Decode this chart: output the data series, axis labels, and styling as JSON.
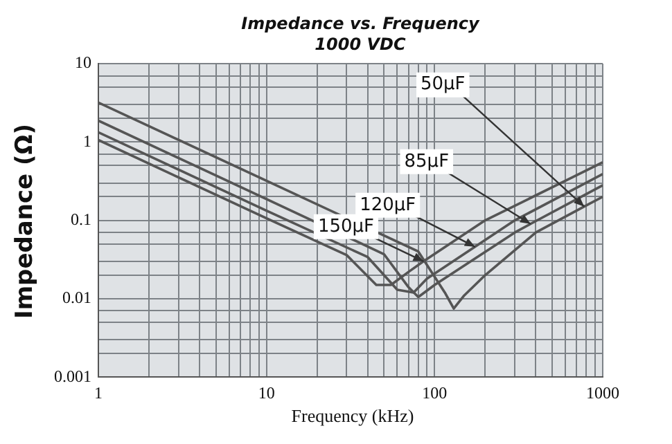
{
  "chart_data": {
    "type": "line",
    "title": "Impedance vs. Frequency",
    "subtitle": "1000 VDC",
    "xlabel": "Frequency (kHz)",
    "ylabel": "Impedance (Ω)",
    "log": "xy",
    "grid": true,
    "legend": false,
    "marker": "none",
    "line_style": "solid",
    "xlim": [
      1,
      1000
    ],
    "ylim": [
      0.001,
      10
    ],
    "xticks": [
      1,
      {
        "value": 2,
        "label": null
      },
      {
        "value": 3,
        "label": null
      },
      {
        "value": 4,
        "label": null
      },
      {
        "value": 5,
        "label": null
      },
      {
        "value": 6,
        "label": null
      },
      {
        "value": 7,
        "label": null
      },
      {
        "value": 8,
        "label": null
      },
      {
        "value": 9,
        "label": null
      },
      10,
      {
        "value": 20,
        "label": null
      },
      {
        "value": 30,
        "label": null
      },
      {
        "value": 40,
        "label": null
      },
      {
        "value": 50,
        "label": null
      },
      {
        "value": 60,
        "label": null
      },
      {
        "value": 70,
        "label": null
      },
      {
        "value": 80,
        "label": null
      },
      {
        "value": 90,
        "label": null
      },
      100,
      {
        "value": 200,
        "label": null
      },
      {
        "value": 300,
        "label": null
      },
      {
        "value": 400,
        "label": null
      },
      {
        "value": 500,
        "label": null
      },
      {
        "value": 600,
        "label": null
      },
      {
        "value": 700,
        "label": null
      },
      {
        "value": 800,
        "label": null
      },
      {
        "value": 900,
        "label": null
      },
      1000
    ],
    "yticks": [
      0.001,
      {
        "value": 0.002,
        "label": null
      },
      {
        "value": 0.003,
        "label": null
      },
      {
        "value": 0.005,
        "label": null
      },
      {
        "value": 0.007,
        "label": null
      },
      0.01,
      {
        "value": 0.02,
        "label": null
      },
      {
        "value": 0.03,
        "label": null
      },
      {
        "value": 0.05,
        "label": null
      },
      {
        "value": 0.07,
        "label": null
      },
      0.1,
      {
        "value": 0.2,
        "label": null
      },
      {
        "value": 0.3,
        "label": null
      },
      {
        "value": 0.5,
        "label": null
      },
      {
        "value": 0.7,
        "label": null
      },
      1,
      {
        "value": 2,
        "label": null
      },
      {
        "value": 3,
        "label": null
      },
      {
        "value": 5,
        "label": null
      },
      {
        "value": 7,
        "label": null
      },
      10
    ],
    "series": [
      {
        "color": "#555555",
        "x": [
          1,
          10,
          80,
          115,
          130,
          150,
          200,
          400,
          776,
          1000
        ],
        "values": [
          3.18,
          0.32,
          0.04,
          0.012,
          0.0075,
          0.011,
          0.02,
          0.07,
          0.15,
          0.2
        ]
      },
      {
        "color": "#555555",
        "x": [
          1,
          10,
          50,
          70,
          80,
          100,
          300,
          372,
          1000
        ],
        "values": [
          1.87,
          0.187,
          0.037,
          0.014,
          0.0105,
          0.015,
          0.07,
          0.09,
          0.28
        ]
      },
      {
        "color": "#555555",
        "x": [
          1,
          10,
          40,
          60,
          75,
          90,
          174,
          300,
          1000
        ],
        "values": [
          1.33,
          0.133,
          0.034,
          0.013,
          0.012,
          0.018,
          0.046,
          0.1,
          0.39
        ]
      },
      {
        "color": "#555555",
        "x": [
          1,
          10,
          30,
          45,
          55,
          70,
          86,
          200,
          1000
        ],
        "values": [
          1.06,
          0.106,
          0.036,
          0.015,
          0.015,
          0.022,
          0.03,
          0.1,
          0.55
        ]
      }
    ],
    "annotations": [
      {
        "text": "50µF",
        "x": 776,
        "y": 0.15
      },
      {
        "text": "85µF",
        "x": 372,
        "y": 0.09
      },
      {
        "text": "120µF",
        "x": 174,
        "y": 0.046
      },
      {
        "text": "150µF",
        "x": 86,
        "y": 0.03
      }
    ]
  }
}
